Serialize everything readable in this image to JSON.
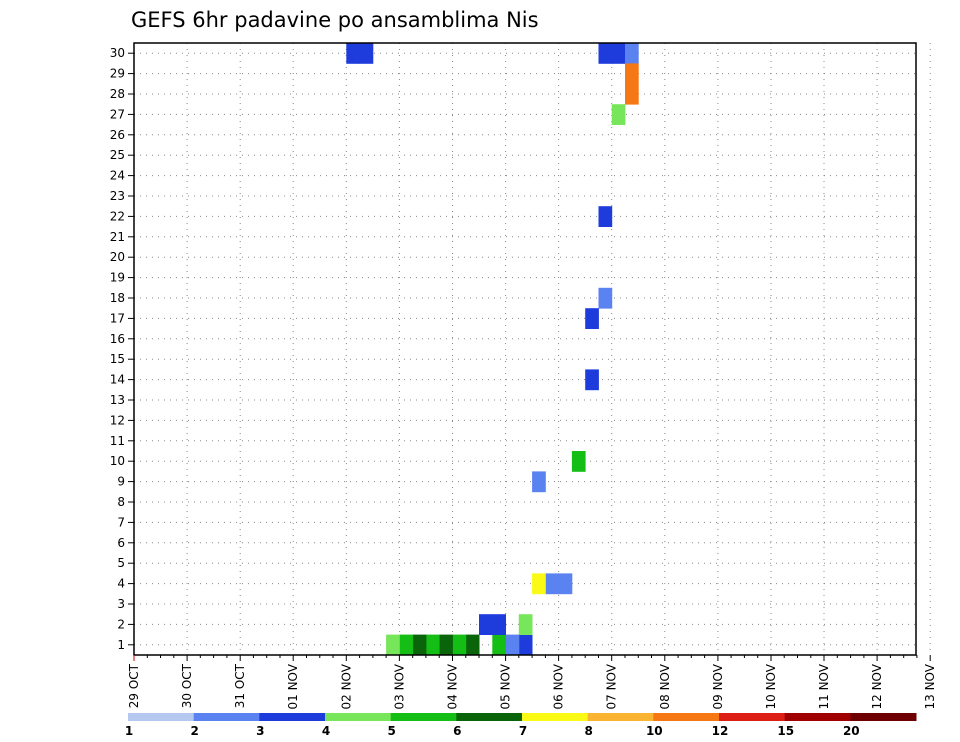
{
  "chart_data": {
    "type": "heatmap",
    "title": "GEFS 6hr padavine po ansamblima Nis",
    "xlabel": "",
    "ylabel": "",
    "x_tick_labels": [
      "29 OCT",
      "30 OCT",
      "31 OCT",
      "01 NOV",
      "02 NOV",
      "03 NOV",
      "04 NOV",
      "05 NOV",
      "06 NOV",
      "07 NOV",
      "08 NOV",
      "09 NOV",
      "10 NOV",
      "11 NOV",
      "12 NOV",
      "13 NOV"
    ],
    "y_tick_labels": [
      "1",
      "2",
      "3",
      "4",
      "5",
      "6",
      "7",
      "8",
      "9",
      "10",
      "11",
      "12",
      "13",
      "14",
      "15",
      "16",
      "17",
      "18",
      "19",
      "20",
      "21",
      "22",
      "23",
      "24",
      "25",
      "26",
      "27",
      "28",
      "29",
      "30"
    ],
    "y_range": [
      0,
      30
    ],
    "x_unit": "6-hour steps from 29 OCT",
    "grid": true,
    "legend_position": "bottom",
    "legend": {
      "labels": [
        "1",
        "2",
        "3",
        "4",
        "5",
        "6",
        "7",
        "8",
        "10",
        "12",
        "15",
        "20"
      ],
      "colors": [
        "#B4C8F0",
        "#5A82F0",
        "#1E3CDC",
        "#78E65A",
        "#14BE14",
        "#0A640A",
        "#FAFA14",
        "#FAB432",
        "#F57814",
        "#DC1E14",
        "#A00000",
        "#6E0000"
      ]
    },
    "cells": [
      [
        16,
        30,
        2
      ],
      [
        17,
        30,
        2
      ],
      [
        35,
        30,
        2
      ],
      [
        36,
        30,
        2
      ],
      [
        37,
        30,
        1
      ],
      [
        37,
        29,
        8
      ],
      [
        37,
        28,
        8
      ],
      [
        36,
        27,
        3
      ],
      [
        35,
        22,
        2
      ],
      [
        35,
        18,
        1
      ],
      [
        34,
        17,
        2
      ],
      [
        34,
        14,
        2
      ],
      [
        33,
        10,
        4
      ],
      [
        32,
        4,
        1
      ],
      [
        31,
        4,
        1
      ],
      [
        30,
        4,
        6
      ],
      [
        30,
        9,
        1
      ],
      [
        29,
        1,
        2
      ],
      [
        29,
        2,
        3
      ],
      [
        28,
        1,
        1
      ],
      [
        27,
        1,
        4
      ],
      [
        27,
        2,
        2
      ],
      [
        26,
        2,
        2
      ],
      [
        25,
        1,
        5
      ],
      [
        24,
        1,
        4
      ],
      [
        23,
        1,
        5
      ],
      [
        22,
        1,
        4
      ],
      [
        21,
        1,
        5
      ],
      [
        20,
        1,
        4
      ],
      [
        19,
        1,
        3
      ]
    ]
  }
}
